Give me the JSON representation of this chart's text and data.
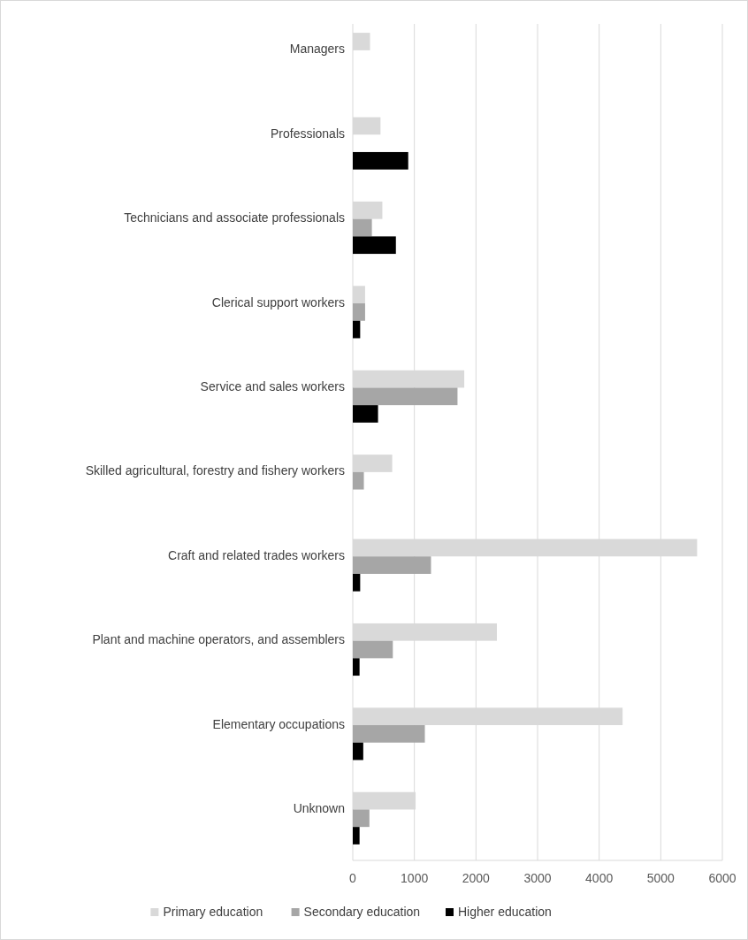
{
  "chart_data": {
    "type": "bar",
    "orientation": "horizontal",
    "categories": [
      "Managers",
      "Professionals",
      "Technicians and associate professionals",
      "Clerical support workers",
      "Service and sales workers",
      "Skilled agricultural, forestry and fishery workers",
      "Craft and related trades workers",
      "Plant and machine operators, and assemblers",
      "Elementary occupations",
      "Unknown"
    ],
    "series": [
      {
        "name": "Primary education",
        "color": "#d9d9d9",
        "values": [
          280,
          450,
          480,
          200,
          1810,
          640,
          5590,
          2340,
          4380,
          1020
        ]
      },
      {
        "name": "Secondary education",
        "color": "#a6a6a6",
        "values": [
          0,
          0,
          310,
          200,
          1700,
          180,
          1270,
          650,
          1170,
          270
        ]
      },
      {
        "name": "Higher education",
        "color": "#000000",
        "values": [
          0,
          900,
          700,
          120,
          410,
          0,
          120,
          110,
          170,
          110
        ]
      }
    ],
    "xlim": [
      0,
      6000
    ],
    "xticks": [
      0,
      1000,
      2000,
      3000,
      4000,
      5000,
      6000
    ],
    "grid": "x",
    "legend": "bottom"
  }
}
